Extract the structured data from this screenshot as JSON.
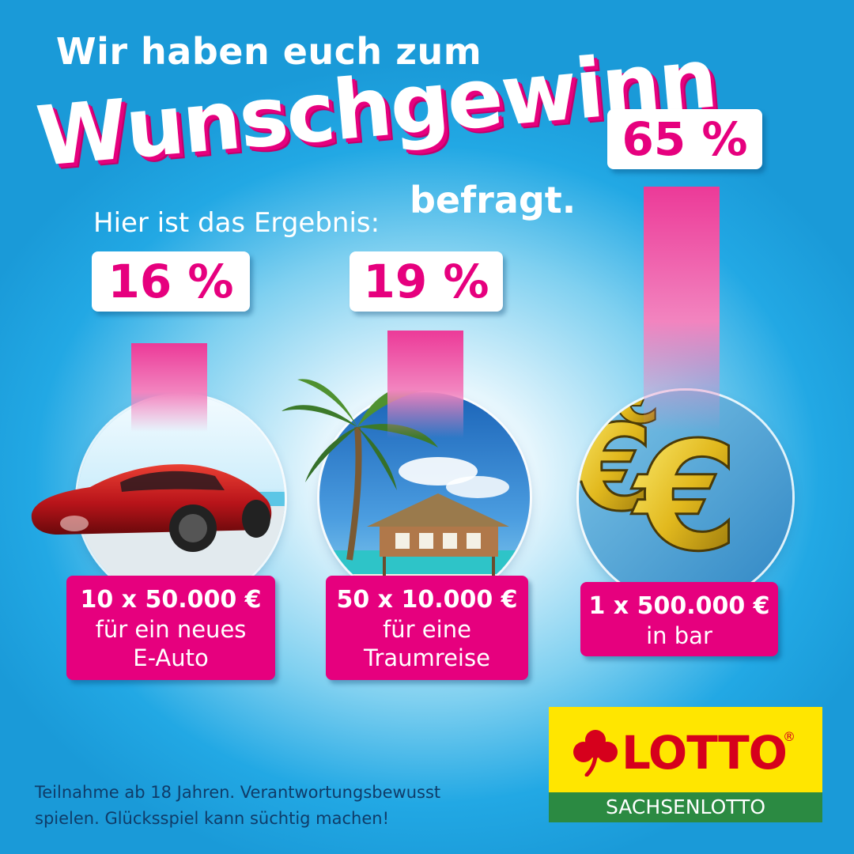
{
  "headline": {
    "line1": "Wir haben euch zum",
    "big": "Wunschgewinn",
    "line3": "befragt.",
    "intro": "Hier ist das Ergebnis:"
  },
  "results": [
    {
      "percent_label": "16 %",
      "share": 16,
      "prize_line1": "10 x 50.000 €",
      "prize_line2": "für ein neues",
      "prize_line3": "E-Auto",
      "image": "red-electric-car"
    },
    {
      "percent_label": "19 %",
      "share": 19,
      "prize_line1": "50 x 10.000 €",
      "prize_line2": "für eine",
      "prize_line3": "Traumreise",
      "image": "palm-beach-hut"
    },
    {
      "percent_label": "65 %",
      "share": 65,
      "prize_line1": "1 x 500.000 €",
      "prize_line2": "in bar",
      "image": "gold-euro-symbols"
    }
  ],
  "disclaimer": "Teilnahme ab 18 Jahren. Verantwortungsbewusst spielen. Glücksspiel kann süchtig machen!",
  "logo": {
    "word": "LOTTO",
    "registered": "®",
    "sub": "SACHSENLOTTO",
    "icon": "clover-icon"
  },
  "colors": {
    "brand_magenta": "#e6007e",
    "sky_blue": "#1a9ad8",
    "logo_yellow": "#ffe600",
    "logo_red": "#d6001c",
    "logo_green": "#2b8a42"
  }
}
